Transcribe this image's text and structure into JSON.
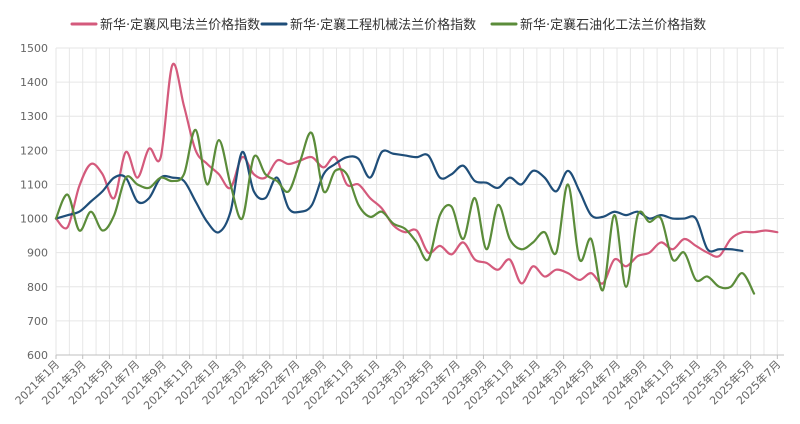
{
  "chart_data": {
    "type": "line",
    "title": "",
    "xlabel": "",
    "ylabel": "",
    "ylim": [
      600,
      1500
    ],
    "yticks": [
      600,
      700,
      800,
      900,
      1000,
      1100,
      1200,
      1300,
      1400,
      1500
    ],
    "categories": [
      "2021年1月",
      "2021年3月",
      "2021年5月",
      "2021年7月",
      "2021年9月",
      "2021年11月",
      "2022年1月",
      "2022年3月",
      "2022年5月",
      "2022年7月",
      "2022年9月",
      "2022年11月",
      "2023年1月",
      "2023年3月",
      "2023年5月",
      "2023年7月",
      "2023年9月",
      "2023年11月",
      "2024年1月",
      "2024年3月",
      "2024年5月",
      "2024年7月",
      "2024年9月",
      "2024年11月",
      "2025年1月",
      "2025年3月",
      "2025年5月",
      "2025年7月"
    ],
    "legend_position": "top",
    "grid": true,
    "series": [
      {
        "name": "新华·定襄风电法兰价格指数",
        "color": "#d45a7c",
        "points": [
          [
            0,
            1000
          ],
          [
            0.5,
            975
          ],
          [
            1,
            1095
          ],
          [
            1.5,
            1160
          ],
          [
            2,
            1130
          ],
          [
            2.5,
            1060
          ],
          [
            3,
            1195
          ],
          [
            3.5,
            1120
          ],
          [
            4,
            1205
          ],
          [
            4.5,
            1180
          ],
          [
            5,
            1450
          ],
          [
            5.5,
            1330
          ],
          [
            6,
            1200
          ],
          [
            6.5,
            1160
          ],
          [
            7,
            1130
          ],
          [
            7.5,
            1090
          ],
          [
            8,
            1180
          ],
          [
            8.5,
            1130
          ],
          [
            9,
            1120
          ],
          [
            9.5,
            1170
          ],
          [
            10,
            1160
          ],
          [
            10.5,
            1170
          ],
          [
            11,
            1180
          ],
          [
            11.5,
            1150
          ],
          [
            12,
            1180
          ],
          [
            12.5,
            1100
          ],
          [
            13,
            1100
          ],
          [
            13.5,
            1060
          ],
          [
            14,
            1030
          ],
          [
            14.5,
            980
          ],
          [
            15,
            960
          ],
          [
            15.5,
            965
          ],
          [
            16,
            900
          ],
          [
            16.5,
            920
          ],
          [
            17,
            895
          ],
          [
            17.5,
            930
          ],
          [
            18,
            880
          ],
          [
            18.5,
            870
          ],
          [
            19,
            850
          ],
          [
            19.5,
            880
          ],
          [
            20,
            810
          ],
          [
            20.5,
            860
          ],
          [
            21,
            830
          ],
          [
            21.5,
            850
          ],
          [
            22,
            840
          ],
          [
            22.5,
            820
          ],
          [
            23,
            840
          ],
          [
            23.5,
            810
          ],
          [
            24,
            880
          ],
          [
            24.5,
            860
          ],
          [
            25,
            890
          ],
          [
            25.5,
            900
          ],
          [
            26,
            930
          ],
          [
            26.5,
            910
          ],
          [
            27,
            940
          ],
          [
            27.5,
            920
          ],
          [
            28,
            900
          ],
          [
            28.5,
            890
          ],
          [
            29,
            940
          ],
          [
            29.5,
            960
          ],
          [
            30,
            960
          ],
          [
            30.5,
            965
          ],
          [
            31,
            960
          ]
        ]
      },
      {
        "name": "新华·定襄工程机械法兰价格指数",
        "color": "#1f4e79",
        "points": [
          [
            0,
            1000
          ],
          [
            0.5,
            1010
          ],
          [
            1,
            1020
          ],
          [
            1.5,
            1050
          ],
          [
            2,
            1080
          ],
          [
            2.5,
            1120
          ],
          [
            3,
            1120
          ],
          [
            3.5,
            1050
          ],
          [
            4,
            1060
          ],
          [
            4.5,
            1120
          ],
          [
            5,
            1120
          ],
          [
            5.5,
            1110
          ],
          [
            6,
            1050
          ],
          [
            6.5,
            990
          ],
          [
            7,
            960
          ],
          [
            7.5,
            1020
          ],
          [
            8,
            1195
          ],
          [
            8.5,
            1080
          ],
          [
            9,
            1060
          ],
          [
            9.5,
            1120
          ],
          [
            10,
            1030
          ],
          [
            10.5,
            1020
          ],
          [
            11,
            1040
          ],
          [
            11.5,
            1130
          ],
          [
            12,
            1160
          ],
          [
            12.5,
            1180
          ],
          [
            13,
            1175
          ],
          [
            13.5,
            1120
          ],
          [
            14,
            1195
          ],
          [
            14.5,
            1190
          ],
          [
            15,
            1185
          ],
          [
            15.5,
            1180
          ],
          [
            16,
            1185
          ],
          [
            16.5,
            1120
          ],
          [
            17,
            1130
          ],
          [
            17.5,
            1155
          ],
          [
            18,
            1110
          ],
          [
            18.5,
            1105
          ],
          [
            19,
            1090
          ],
          [
            19.5,
            1120
          ],
          [
            20,
            1100
          ],
          [
            20.5,
            1140
          ],
          [
            21,
            1120
          ],
          [
            21.5,
            1080
          ],
          [
            22,
            1140
          ],
          [
            22.5,
            1080
          ],
          [
            23,
            1010
          ],
          [
            23.5,
            1005
          ],
          [
            24,
            1020
          ],
          [
            24.5,
            1010
          ],
          [
            25,
            1020
          ],
          [
            25.5,
            1000
          ],
          [
            26,
            1010
          ],
          [
            26.5,
            1000
          ],
          [
            27,
            1000
          ],
          [
            27.5,
            1000
          ],
          [
            28,
            910
          ],
          [
            28.5,
            910
          ],
          [
            29,
            910
          ],
          [
            29.5,
            905
          ]
        ]
      },
      {
        "name": "新华·定襄石油化工法兰价格指数",
        "color": "#5b8c3a",
        "points": [
          [
            0,
            1000
          ],
          [
            0.5,
            1070
          ],
          [
            1,
            965
          ],
          [
            1.5,
            1020
          ],
          [
            2,
            965
          ],
          [
            2.5,
            1010
          ],
          [
            3,
            1120
          ],
          [
            3.5,
            1100
          ],
          [
            4,
            1090
          ],
          [
            4.5,
            1120
          ],
          [
            5,
            1110
          ],
          [
            5.5,
            1130
          ],
          [
            6,
            1260
          ],
          [
            6.5,
            1100
          ],
          [
            7,
            1230
          ],
          [
            7.5,
            1100
          ],
          [
            8,
            1000
          ],
          [
            8.5,
            1180
          ],
          [
            9,
            1130
          ],
          [
            9.5,
            1110
          ],
          [
            10,
            1080
          ],
          [
            10.5,
            1170
          ],
          [
            11,
            1250
          ],
          [
            11.5,
            1080
          ],
          [
            12,
            1140
          ],
          [
            12.5,
            1130
          ],
          [
            13,
            1040
          ],
          [
            13.5,
            1005
          ],
          [
            14,
            1020
          ],
          [
            14.5,
            985
          ],
          [
            15,
            970
          ],
          [
            15.5,
            930
          ],
          [
            16,
            880
          ],
          [
            16.5,
            1010
          ],
          [
            17,
            1035
          ],
          [
            17.5,
            940
          ],
          [
            18,
            1060
          ],
          [
            18.5,
            910
          ],
          [
            19,
            1040
          ],
          [
            19.5,
            940
          ],
          [
            20,
            910
          ],
          [
            20.5,
            930
          ],
          [
            21,
            960
          ],
          [
            21.5,
            900
          ],
          [
            22,
            1100
          ],
          [
            22.5,
            880
          ],
          [
            23,
            940
          ],
          [
            23.5,
            790
          ],
          [
            24,
            1010
          ],
          [
            24.5,
            800
          ],
          [
            25,
            1010
          ],
          [
            25.5,
            990
          ],
          [
            26,
            1000
          ],
          [
            26.5,
            880
          ],
          [
            27,
            900
          ],
          [
            27.5,
            820
          ],
          [
            28,
            830
          ],
          [
            28.5,
            800
          ],
          [
            29,
            800
          ],
          [
            29.5,
            840
          ],
          [
            30,
            780
          ]
        ]
      }
    ]
  }
}
